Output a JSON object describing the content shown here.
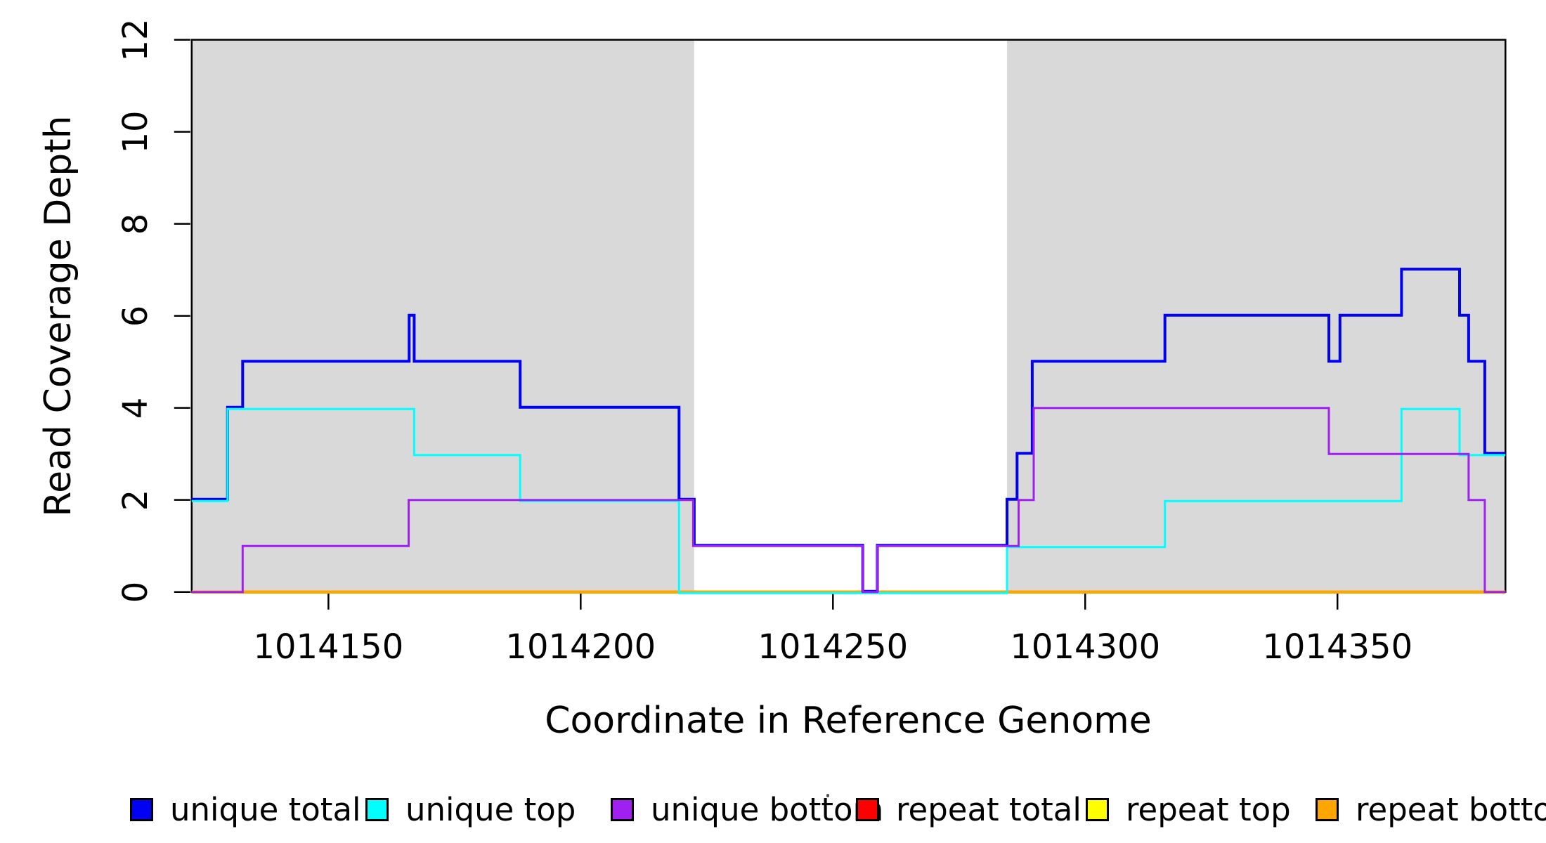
{
  "chart_data": {
    "type": "line",
    "subtype": "step-coverage",
    "title": "",
    "xlabel": "Coordinate in Reference Genome",
    "ylabel": "Read Coverage Depth",
    "xlim": [
      1014122.9,
      1014383.3
    ],
    "ylim": [
      0,
      12
    ],
    "x_ticks": [
      1014150,
      1014200,
      1014250,
      1014300,
      1014350
    ],
    "y_ticks": [
      0,
      2,
      4,
      6,
      8,
      10,
      12
    ],
    "grid": false,
    "legend_position": "bottom",
    "background_color": "#ffffff",
    "highlight_color": "#d9d9d9",
    "highlight_regions": [
      {
        "name": "shaded-region-left",
        "x0": 1014122.9,
        "x1": 1014222.5,
        "color": "#d9d9d9"
      },
      {
        "name": "shaded-region-right",
        "x0": 1014284.5,
        "x1": 1014383.3,
        "color": "#d9d9d9"
      }
    ],
    "series": [
      {
        "name": "repeat total",
        "color": "#ff0000",
        "width": 3,
        "steps": [
          [
            1014122.9,
            0
          ],
          [
            1014383.3,
            0
          ]
        ]
      },
      {
        "name": "repeat top",
        "color": "#ffff00",
        "width": 3,
        "steps": [
          [
            1014122.9,
            0
          ],
          [
            1014383.3,
            0
          ]
        ]
      },
      {
        "name": "repeat bottom",
        "color": "#ffa500",
        "width": 4.5,
        "steps": [
          [
            1014122.9,
            0
          ],
          [
            1014383.3,
            0
          ]
        ]
      },
      {
        "name": "unique total",
        "color": "#0202f2",
        "width": 4,
        "steps": [
          [
            1014122.9,
            2
          ],
          [
            1014130,
            2
          ],
          [
            1014130,
            4
          ],
          [
            1014133,
            4
          ],
          [
            1014133,
            5
          ],
          [
            1014166,
            5
          ],
          [
            1014166,
            6
          ],
          [
            1014167,
            6
          ],
          [
            1014167,
            5
          ],
          [
            1014188,
            5
          ],
          [
            1014188,
            4
          ],
          [
            1014219.5,
            4
          ],
          [
            1014219.5,
            2
          ],
          [
            1014222.5,
            2
          ],
          [
            1014222.5,
            1
          ],
          [
            1014255.9,
            1
          ],
          [
            1014255.9,
            0
          ],
          [
            1014258.8,
            0
          ],
          [
            1014258.8,
            1
          ],
          [
            1014284.5,
            1
          ],
          [
            1014284.5,
            2
          ],
          [
            1014286.5,
            2
          ],
          [
            1014286.5,
            3
          ],
          [
            1014289.5,
            3
          ],
          [
            1014289.5,
            5
          ],
          [
            1014315.8,
            5
          ],
          [
            1014315.8,
            6
          ],
          [
            1014348.3,
            6
          ],
          [
            1014348.3,
            5
          ],
          [
            1014350.5,
            5
          ],
          [
            1014350.5,
            6
          ],
          [
            1014362.7,
            6
          ],
          [
            1014362.7,
            7
          ],
          [
            1014374.2,
            7
          ],
          [
            1014374.2,
            6
          ],
          [
            1014376,
            6
          ],
          [
            1014376,
            5
          ],
          [
            1014379.2,
            5
          ],
          [
            1014379.2,
            3
          ],
          [
            1014383.3,
            3
          ]
        ]
      },
      {
        "name": "unique top",
        "color": "#00ffff",
        "width": 3,
        "steps": [
          [
            1014122.9,
            2
          ],
          [
            1014130,
            2
          ],
          [
            1014130,
            4
          ],
          [
            1014167,
            4
          ],
          [
            1014167,
            3
          ],
          [
            1014188,
            3
          ],
          [
            1014188,
            2
          ],
          [
            1014219.5,
            2
          ],
          [
            1014219.5,
            0
          ],
          [
            1014284.5,
            0
          ],
          [
            1014284.5,
            1
          ],
          [
            1014315.8,
            1
          ],
          [
            1014315.8,
            2
          ],
          [
            1014362.7,
            2
          ],
          [
            1014362.7,
            4
          ],
          [
            1014374.2,
            4
          ],
          [
            1014374.2,
            3
          ],
          [
            1014383.3,
            3
          ]
        ]
      },
      {
        "name": "unique bottom",
        "color": "#a020f0",
        "width": 3,
        "steps": [
          [
            1014122.9,
            0
          ],
          [
            1014133,
            0
          ],
          [
            1014133,
            1
          ],
          [
            1014165.9,
            1
          ],
          [
            1014165.9,
            2
          ],
          [
            1014222.3,
            2
          ],
          [
            1014222.3,
            1
          ],
          [
            1014255.9,
            1
          ],
          [
            1014255.9,
            0
          ],
          [
            1014258.8,
            0
          ],
          [
            1014258.8,
            1
          ],
          [
            1014286.8,
            1
          ],
          [
            1014286.8,
            2
          ],
          [
            1014289.8,
            2
          ],
          [
            1014289.8,
            4
          ],
          [
            1014348.3,
            4
          ],
          [
            1014348.3,
            3
          ],
          [
            1014376,
            3
          ],
          [
            1014376,
            2
          ],
          [
            1014379.2,
            2
          ],
          [
            1014379.2,
            0
          ],
          [
            1014383.3,
            0
          ]
        ]
      }
    ]
  },
  "axes": {
    "x_tick_labels": [
      "1014150",
      "1014200",
      "1014250",
      "1014300",
      "1014350"
    ],
    "y_tick_labels": [
      "0",
      "2",
      "4",
      "6",
      "8",
      "10",
      "12"
    ]
  },
  "legend": {
    "items": [
      {
        "label": "unique total",
        "color": "#0202f2"
      },
      {
        "label": "unique top",
        "color": "#00ffff"
      },
      {
        "label": "unique bottom",
        "color": "#a020f0"
      },
      {
        "label": "repeat total",
        "color": "#ff0000"
      },
      {
        "label": "repeat top",
        "color": "#ffff00"
      },
      {
        "label": "repeat bottom",
        "color": "#ffa500"
      }
    ]
  }
}
